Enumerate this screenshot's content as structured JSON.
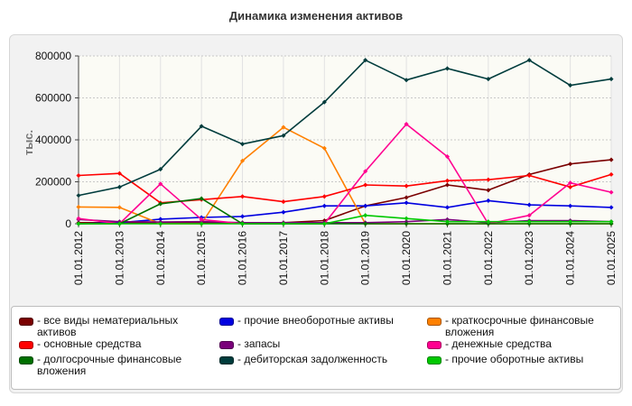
{
  "chart_data": {
    "type": "line",
    "title": "Динамика изменения активов",
    "ylabel": "тыс.",
    "xlabel": "",
    "ylim": [
      0,
      800000
    ],
    "yticks": [
      0,
      200000,
      400000,
      600000,
      800000
    ],
    "grid": true,
    "legend_position": "bottom",
    "x": [
      "01.01.2012",
      "01.01.2013",
      "01.01.2014",
      "01.01.2015",
      "01.01.2016",
      "01.01.2017",
      "01.01.2018",
      "01.01.2019",
      "01.01.2020",
      "01.01.2021",
      "01.01.2022",
      "01.01.2023",
      "01.01.2024",
      "01.01.2025"
    ],
    "series": [
      {
        "name": "все виды нематериальных активов",
        "color": "#7a0000",
        "values": [
          5000,
          5000,
          5000,
          5000,
          5000,
          5000,
          15000,
          85000,
          125000,
          185000,
          160000,
          235000,
          285000,
          305000
        ]
      },
      {
        "name": "прочие внеоборотные активы",
        "color": "#0000e0",
        "values": [
          0,
          5000,
          22000,
          30000,
          35000,
          55000,
          85000,
          85000,
          100000,
          78000,
          110000,
          90000,
          85000,
          78000
        ]
      },
      {
        "name": "краткосрочные финансовые вложения",
        "color": "#ff8000",
        "values": [
          80000,
          78000,
          0,
          0,
          300000,
          460000,
          360000,
          0,
          0,
          0,
          0,
          0,
          0,
          0
        ]
      },
      {
        "name": "основные средства",
        "color": "#ff0000",
        "values": [
          230000,
          240000,
          100000,
          115000,
          130000,
          105000,
          130000,
          185000,
          180000,
          205000,
          210000,
          230000,
          175000,
          235000
        ]
      },
      {
        "name": "запасы",
        "color": "#7a007a",
        "values": [
          20000,
          10000,
          8000,
          10000,
          5000,
          5000,
          5000,
          5000,
          10000,
          20000,
          5000,
          15000,
          15000,
          10000
        ]
      },
      {
        "name": "денежные средства",
        "color": "#ff0090",
        "values": [
          25000,
          0,
          190000,
          20000,
          0,
          0,
          0,
          250000,
          475000,
          320000,
          0,
          40000,
          195000,
          150000
        ]
      },
      {
        "name": "долгосрочные финансовые вложения",
        "color": "#007000",
        "values": [
          0,
          0,
          95000,
          120000,
          0,
          0,
          0,
          0,
          0,
          0,
          0,
          0,
          0,
          0
        ]
      },
      {
        "name": "дебиторская задолженность",
        "color": "#003c3c",
        "values": [
          135000,
          175000,
          260000,
          465000,
          380000,
          420000,
          580000,
          780000,
          685000,
          740000,
          690000,
          780000,
          660000,
          690000
        ]
      },
      {
        "name": "прочие оборотные активы",
        "color": "#00c800",
        "values": [
          0,
          0,
          0,
          0,
          0,
          0,
          0,
          40000,
          25000,
          10000,
          10000,
          10000,
          10000,
          10000
        ]
      }
    ]
  }
}
